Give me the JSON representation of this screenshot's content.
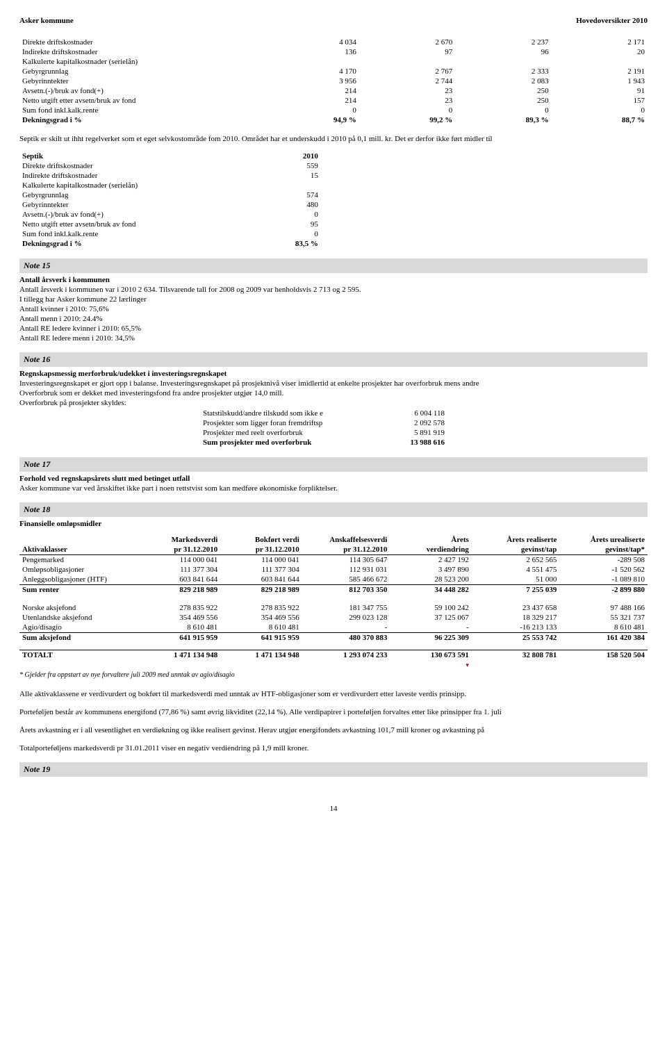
{
  "header": {
    "left": "Asker kommune",
    "right": "Hovedoversikter 2010"
  },
  "table1": {
    "rows": [
      {
        "label": "Direkte driftskostnader",
        "v": [
          "4 034",
          "2 670",
          "2 237",
          "2 171"
        ]
      },
      {
        "label": "Indirekte driftskostnader",
        "v": [
          "136",
          "97",
          "96",
          "20"
        ]
      },
      {
        "label": "Kalkulerte kapitalkostnader (serielån)",
        "v": [
          "",
          "",
          "",
          ""
        ]
      },
      {
        "label": "Gebyrgrunnlag",
        "v": [
          "4 170",
          "2 767",
          "2 333",
          "2 191"
        ]
      },
      {
        "label": "Gebyrinntekter",
        "v": [
          "3 956",
          "2 744",
          "2 083",
          "1 943"
        ]
      },
      {
        "label": "Avsetn.(-)/bruk av fond(+)",
        "v": [
          "214",
          "23",
          "250",
          "91"
        ]
      },
      {
        "label": "Netto utgift etter avsetn/bruk av fond",
        "v": [
          "214",
          "23",
          "250",
          "157"
        ]
      },
      {
        "label": "Sum fond inkl.kalk.rente",
        "v": [
          "0",
          "0",
          "0",
          "0"
        ]
      },
      {
        "label": "Dekningsgrad i %",
        "v": [
          "94,9 %",
          "99,2 %",
          "89,3 %",
          "88,7 %"
        ],
        "bold": true
      }
    ]
  },
  "septik_text": "Septik er skilt ut ihht regelverket som et eget selvkostområde fom 2010. Området har et underskudd i 2010 på 0,1 mill. kr. Det er derfor ikke ført midler til",
  "table2": {
    "header": {
      "label": "Septik",
      "col": "2010"
    },
    "rows": [
      {
        "label": "Direkte driftskostnader",
        "v": "559"
      },
      {
        "label": "Indirekte driftskostnader",
        "v": "15"
      },
      {
        "label": "Kalkulerte kapitalkostnader (serielån)",
        "v": ""
      },
      {
        "label": "Gebyrgrunnlag",
        "v": "574"
      },
      {
        "label": "Gebyrinntekter",
        "v": "480"
      },
      {
        "label": "Avsetn.(-)/bruk av fond(+)",
        "v": "0"
      },
      {
        "label": "Netto utgift etter avsetn/bruk av fond",
        "v": "95"
      },
      {
        "label": "Sum fond inkl.kalk.rente",
        "v": "0"
      },
      {
        "label": "Dekningsgrad i %",
        "v": "83,5 %",
        "bold": true
      }
    ]
  },
  "note15": {
    "title": "Note 15",
    "subtitle": "Antall årsverk i kommunen",
    "lines": [
      "Antall årsverk i kommunen var i 2010 2 634. Tilsvarende tall for 2008 og 2009 var henholdsvis 2 713 og 2 595.",
      "I tillegg har Asker kommune 22 lærlinger",
      "Antall kvinner i 2010: 75,6%",
      "Antall menn i 2010: 24.4%",
      "Antall RE ledere kvinner i 2010: 65,5%",
      "Antall RE ledere menn i 2010: 34,5%"
    ]
  },
  "note16": {
    "title": "Note 16",
    "subtitle": "Regnskapsmessig merforbruk/udekket i investeringsregnskapet",
    "desc1": "Investeringsregnskapet er gjort opp i balanse. Investeringsregnskapet på prosjektnivå viser imidlertid at enkelte prosjekter har overforbruk mens andre",
    "desc2": "Overforbruk som er dekket med investeringsfond fra andre prosjekter utgjør 14,0 mill.",
    "desc3": "Overforbruk på prosjekter skyldes:",
    "rows": [
      {
        "label": "Statstilskudd/andre tilskudd som ikke e",
        "v": "6 004 118"
      },
      {
        "label": "Prosjekter som ligger foran fremdriftsp",
        "v": "2 092 578"
      },
      {
        "label": "Prosjekter med reelt overforbruk",
        "v": "5 891 919"
      },
      {
        "label": "Sum prosjekter med overforbruk",
        "v": "13 988 616",
        "bold": true
      }
    ]
  },
  "note17": {
    "title": "Note 17",
    "subtitle": "Forhold ved regnskapsårets slutt med betinget utfall",
    "line": "Asker kommune var ved årsskiftet ikke part i noen rettstvist som kan medføre økonomiske forpliktelser."
  },
  "note18": {
    "title": "Note 18",
    "subtitle": "Finansielle omløpsmidler",
    "headers": {
      "c0": "Aktivaklasser",
      "c1a": "Markedsverdi",
      "c1b": "pr 31.12.2010",
      "c2a": "Bokført verdi",
      "c2b": "pr 31.12.2010",
      "c3a": "Anskaffelsesverdi",
      "c3b": "pr 31.12.2010",
      "c4a": "Årets",
      "c4b": "verdiendring",
      "c5a": "Årets realiserte",
      "c5b": "gevinst/tap",
      "c6a": "Årets urealiserte",
      "c6b": "gevinst/tap*"
    },
    "rows": [
      {
        "label": "Pengemarked",
        "v": [
          "114 000 041",
          "114 000 041",
          "114 305 647",
          "2 427 192",
          "2 652 565",
          "-289 508"
        ]
      },
      {
        "label": "Omløpsobligasjoner",
        "v": [
          "111 377 304",
          "111 377 304",
          "112 931 031",
          "3 497 890",
          "4 551 475",
          "-1 520 562"
        ]
      },
      {
        "label": "Anleggsobligasjoner (HTF)",
        "v": [
          "603 841 644",
          "603 841 644",
          "585 466 672",
          "28 523 200",
          "51 000",
          "-1 089 810"
        ]
      }
    ],
    "sum_renter": {
      "label": "Sum renter",
      "v": [
        "829 218 989",
        "829 218 989",
        "812 703 350",
        "34 448 282",
        "7 255 039",
        "-2 899 880"
      ]
    },
    "rows2": [
      {
        "label": "Norske aksjefond",
        "v": [
          "278 835 922",
          "278 835 922",
          "181 347 755",
          "59 100 242",
          "23 437 658",
          "97 488 166"
        ]
      },
      {
        "label": "Utenlandske aksjefond",
        "v": [
          "354 469 556",
          "354 469 556",
          "299 023 128",
          "37 125 067",
          "18 329 217",
          "55 321 737"
        ]
      },
      {
        "label": "Agio/disagio",
        "v": [
          "8 610 481",
          "8 610 481",
          "-",
          "-",
          "-16 213 133",
          "8 610 481"
        ]
      }
    ],
    "sum_aksjefond": {
      "label": "Sum aksjefond",
      "v": [
        "641 915 959",
        "641 915 959",
        "480 370 883",
        "96 225 309",
        "25 553 742",
        "161 420 384"
      ]
    },
    "totalt": {
      "label": "TOTALT",
      "v": [
        "1 471 134 948",
        "1 471 134 948",
        "1 293 074 233",
        "130 673 591",
        "32 808 781",
        "158 520 504"
      ]
    },
    "footnote": "* Gjelder fra oppstart av nye forvaltere juli 2009 med unntak av agio/disagio",
    "after": [
      "Alle aktivaklassene er verdivurdert og bokført til markedsverdi med unntak av HTF-obligasjoner som er verdivurdert etter laveste verdis prinsipp.",
      "Porteføljen består av kommunens energifond (77,86 %) samt øvrig likviditet (22,14 %). Alle verdipapirer i porteføljen forvaltes etter like prinsipper fra 1. juli",
      "Årets avkastning er i all vesentlighet en verdiøkning og ikke realisert gevinst. Herav utgjør energifondets avkastning 101,7 mill kroner og avkastning på",
      "Totalporteføljens markedsverdi pr 31.01.2011 viser en negativ verdiendring på 1,9 mill kroner."
    ]
  },
  "note19": {
    "title": "Note 19"
  },
  "page_num": "14"
}
